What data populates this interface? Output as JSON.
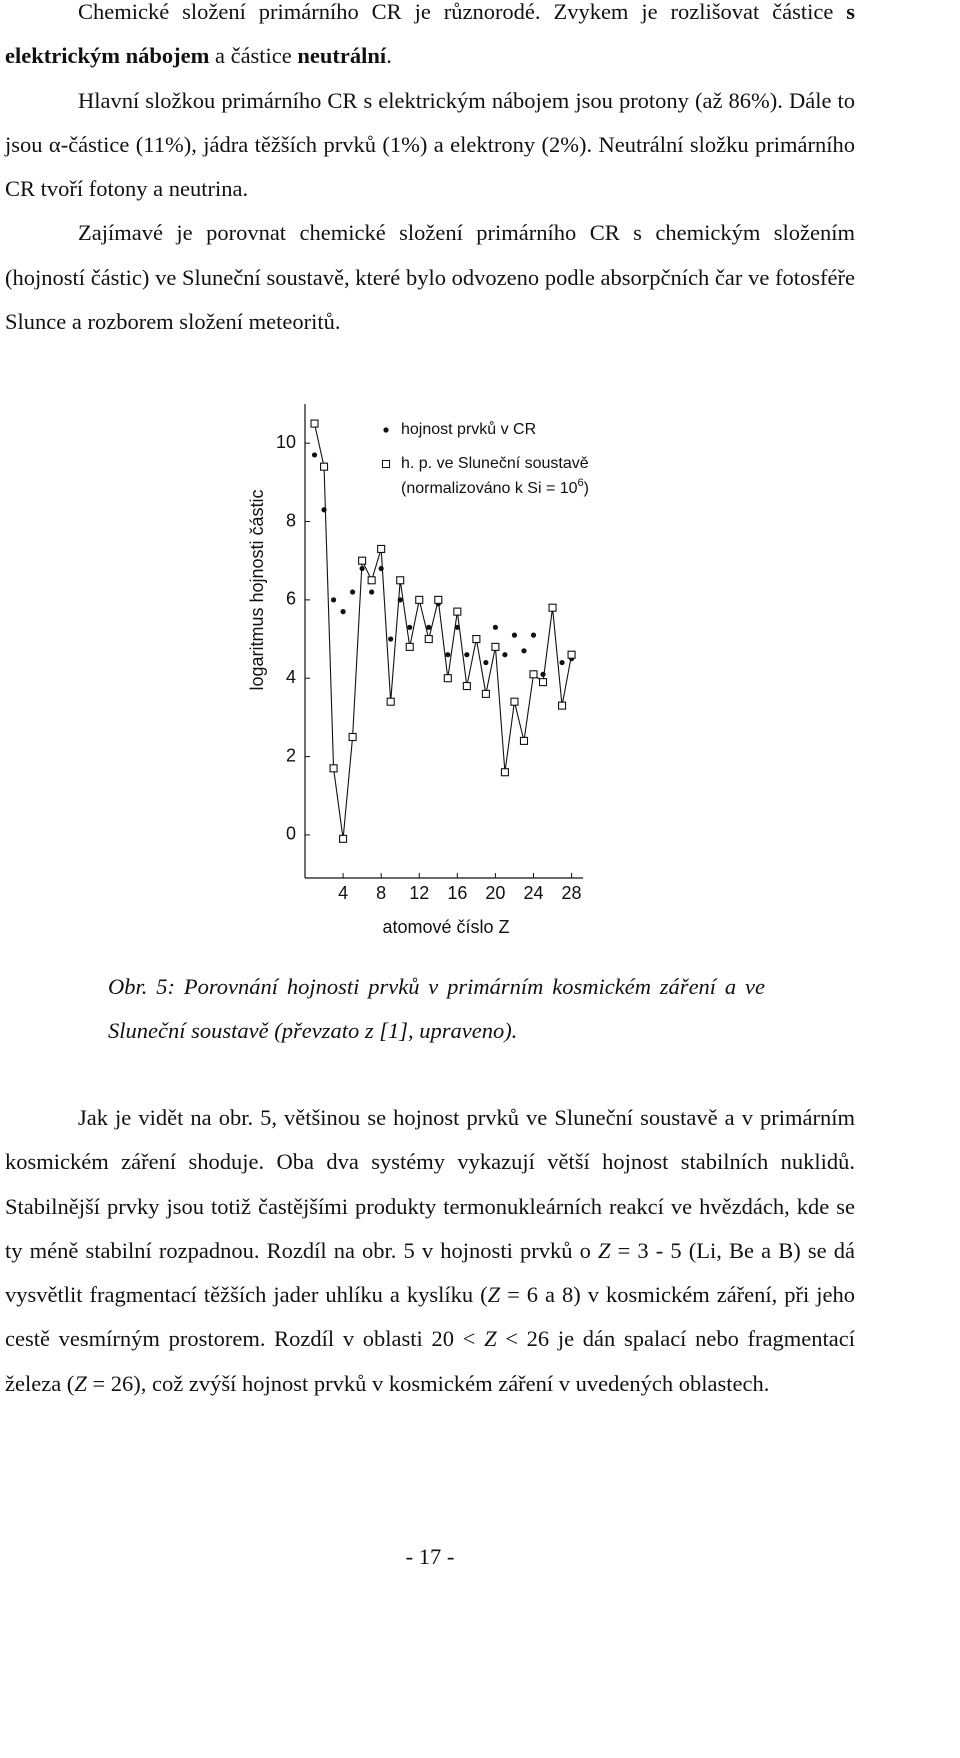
{
  "text_before": [
    {
      "runs": [
        {
          "text": "Chemické složení primárního CR je různorodé. Zvykem je rozlišovat částice ",
          "style": "normal"
        },
        {
          "text": "s elektrickým nábojem",
          "style": "bold"
        },
        {
          "text": " a částice ",
          "style": "normal"
        },
        {
          "text": "neutrální",
          "style": "bold"
        },
        {
          "text": ".",
          "style": "normal"
        }
      ]
    },
    {
      "runs": [
        {
          "text": "Hlavní složkou primárního CR s elektrickým nábojem jsou protony (až 86%). Dále to jsou α-částice (11%), jádra těžších prvků (1%) a elektrony (2%). Neutrální složku primárního CR tvoří fotony a neutrina.",
          "style": "normal"
        }
      ]
    },
    {
      "runs": [
        {
          "text": "Zajímavé je porovnat chemické složení primárního CR s chemickým složením (hojností částic) ve Sluneční soustavě, které bylo odvozeno podle absorpčních čar ve fotosféře Slunce a rozborem složení meteoritů.",
          "style": "normal"
        }
      ]
    }
  ],
  "chart_data": {
    "type": "scatter",
    "x_label": "atomové číslo Z",
    "y_label": "logaritmus hojnosti částic",
    "x": [
      1,
      2,
      3,
      4,
      5,
      6,
      7,
      8,
      9,
      10,
      11,
      12,
      13,
      14,
      15,
      16,
      17,
      18,
      19,
      20,
      21,
      22,
      23,
      24,
      25,
      26,
      27,
      28
    ],
    "series": [
      {
        "name": "hojnost prvků v CR",
        "color": "#111111",
        "marker": "circle",
        "line": false,
        "values": [
          9.7,
          8.3,
          6.0,
          5.7,
          6.2,
          6.8,
          6.2,
          6.8,
          5.0,
          6.0,
          5.3,
          6.0,
          5.3,
          5.9,
          4.6,
          5.3,
          4.6,
          5.0,
          4.4,
          5.3,
          4.6,
          5.1,
          4.7,
          5.1,
          4.1,
          5.8,
          4.4,
          4.5
        ]
      },
      {
        "name": "h. p. ve Sluneční soustavě",
        "color": "#111111",
        "marker": "square",
        "line": true,
        "values": [
          10.5,
          9.4,
          1.7,
          -0.1,
          2.5,
          7.0,
          6.5,
          7.3,
          3.4,
          6.5,
          4.8,
          6.0,
          5.0,
          6.0,
          4.0,
          5.7,
          3.8,
          5.0,
          3.6,
          4.8,
          1.6,
          3.4,
          2.4,
          4.1,
          3.9,
          5.8,
          3.3,
          4.6
        ]
      }
    ],
    "legend_note": "(normalizováno k Si = 10",
    "legend_note_exponent": "6",
    "legend_note_end": ")",
    "legend": "top-right",
    "xlim": [
      0,
      29.2
    ],
    "ylim": [
      -1.1,
      11.0
    ],
    "xticks": [
      4,
      8,
      12,
      16,
      20,
      24,
      28
    ],
    "yticks": [
      0,
      2,
      4,
      6,
      8,
      10
    ]
  },
  "caption": {
    "label": "Obr. 5:",
    "text": "Porovnání hojnosti prvků v primárním kosmickém záření a ve Sluneční soustavě (převzato z [1], upraveno)."
  },
  "text_after": [
    {
      "runs": [
        {
          "text": "Jak je vidět na obr. 5, většinou se hojnost prvků ve Sluneční soustavě a v primárním kosmickém záření shoduje. Oba dva systémy vykazují větší hojnost stabilních nuklidů. Stabilnější prvky jsou totiž častějšími produkty termonukleárních reakcí ve hvězdách, kde se ty méně stabilní rozpadnou. Rozdíl na obr. 5 v hojnosti prvků o ",
          "style": "normal"
        },
        {
          "text": "Z",
          "style": "italic"
        },
        {
          "text": " = 3 - 5 (Li, Be a B) se dá vysvětlit fragmentací těžších jader uhlíku a kyslíku (",
          "style": "normal"
        },
        {
          "text": "Z",
          "style": "italic"
        },
        {
          "text": " = 6 a 8) v kosmickém záření, při jeho cestě vesmírným prostorem. Rozdíl v oblasti 20 < ",
          "style": "normal"
        },
        {
          "text": "Z",
          "style": "italic"
        },
        {
          "text": " < 26 je dán spalací nebo fragmentací železa (",
          "style": "normal"
        },
        {
          "text": "Z",
          "style": "italic"
        },
        {
          "text": " = 26), což zvýší hojnost prvků v kosmickém záření v uvedených oblastech.",
          "style": "normal"
        }
      ]
    }
  ],
  "page_number": "- 17 -"
}
